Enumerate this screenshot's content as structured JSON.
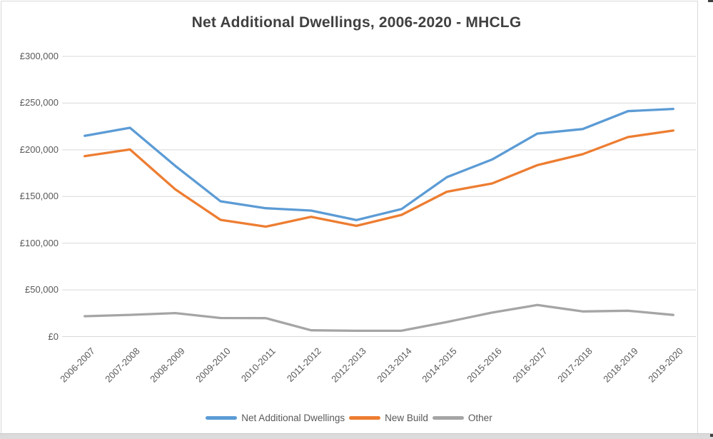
{
  "title": "Net Additional Dwellings, 2006-2020 - MHCLG",
  "colors": {
    "title_text": "#404040",
    "axis_text": "#595959",
    "gridline": "#D9D9D9",
    "frame_border": "#D9D9D9",
    "bottom_strip": "#DBDBDB",
    "series_blue": "#5B9BD5",
    "series_orange": "#ED7D31",
    "series_gray": "#A5A5A5"
  },
  "chart_data": {
    "type": "line",
    "title": "Net Additional Dwellings, 2006-2020 - MHCLG",
    "categories": [
      "2006-2007",
      "2007-2008",
      "2008-2009",
      "2009-2010",
      "2010-2011",
      "2011-2012",
      "2012-2013",
      "2013-2014",
      "2014-2015",
      "2015-2016",
      "2016-2017",
      "2017-2018",
      "2018-2019",
      "2019-2020"
    ],
    "series": [
      {
        "name": "Net Additional Dwellings",
        "color": "#5B9BD5",
        "values": [
          214940,
          223530,
          182770,
          144870,
          137390,
          134900,
          124720,
          136610,
          170690,
          189650,
          217350,
          222190,
          241340,
          243770
        ]
      },
      {
        "name": "New Build",
        "color": "#ED7D31",
        "values": [
          193190,
          200300,
          157630,
          124970,
          117700,
          128160,
          118540,
          130340,
          155080,
          163940,
          183570,
          195290,
          213660,
          220600
        ]
      },
      {
        "name": "Other",
        "color": "#A5A5A5",
        "values": [
          21750,
          23230,
          25140,
          19900,
          19690,
          6740,
          6180,
          6270,
          15610,
          25710,
          33780,
          26900,
          27680,
          23170
        ]
      }
    ],
    "y_axis": {
      "min": 0,
      "max": 300000,
      "step": 50000,
      "tick_labels": [
        "£0",
        "£50,000",
        "£100,000",
        "£150,000",
        "£200,000",
        "£250,000",
        "£300,000"
      ]
    },
    "grid": true,
    "legend_position": "bottom"
  }
}
